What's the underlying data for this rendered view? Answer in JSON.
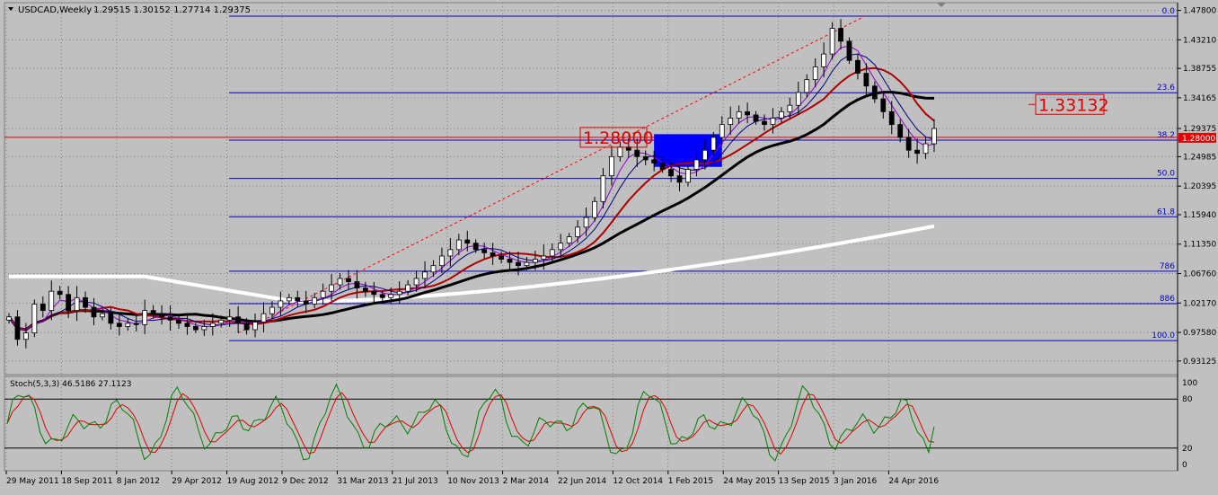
{
  "window": {
    "title": "USDCAD,Weekly",
    "ohlc": "1.29515 1.30152 1.27714 1.29375"
  },
  "colors": {
    "background": "#c0c0c0",
    "grid": "#808080",
    "fib_levels": "#0000c8",
    "level_line": "#e00000",
    "trendline": "#ff0000",
    "box_fill": "#0000ff",
    "candle_body": "#000000",
    "ma_white": "#ffffff",
    "ma_black": "#000000",
    "ma_red": "#b00000",
    "ma_navy": "#000080",
    "ma_purple": "#9400d3",
    "stoch_main": "#008000",
    "stoch_signal": "#e00000"
  },
  "chart_data": [
    {
      "type": "candlestick",
      "title": "USDCAD,Weekly",
      "ohlc_last": {
        "open": 1.29515,
        "high": 1.30152,
        "low": 1.27714,
        "close": 1.29375
      },
      "ylim": [
        0.91,
        1.49
      ],
      "y_ticks": [
        "1.47800",
        "1.43210",
        "1.38755",
        "1.34165",
        "1.29375",
        "1.24985",
        "1.20395",
        "1.15940",
        "1.11350",
        "1.06760",
        "1.02170",
        "0.97580",
        "0.93125"
      ],
      "price_tag": "1.28000",
      "x_ticks": [
        "29 May 2011",
        "18 Sep 2011",
        "8 Jan 2012",
        "29 Apr 2012",
        "19 Aug 2012",
        "9 Dec 2012",
        "31 Mar 2013",
        "21 Jul 2013",
        "10 Nov 2013",
        "2 Mar 2014",
        "22 Jun 2014",
        "12 Oct 2014",
        "1 Feb 2015",
        "24 May 2015",
        "13 Sep 2015",
        "3 Jan 2016",
        "24 Apr 2016"
      ],
      "fib_levels": [
        {
          "label": "0.0",
          "value": 1.4689
        },
        {
          "label": "23.6",
          "value": 1.3496
        },
        {
          "label": "38.2",
          "value": 1.2757
        },
        {
          "label": "50.0",
          "value": 1.216
        },
        {
          "label": "61.8",
          "value": 1.1562
        },
        {
          "label": "786",
          "value": 1.0713
        },
        {
          "label": "886",
          "value": 1.0207
        },
        {
          "label": "100.0",
          "value": 0.9631
        }
      ],
      "horizontal_level": 1.28,
      "annotations": [
        {
          "text": "1.28000",
          "value": 1.28
        },
        {
          "text": "1.33132",
          "value": 1.33132
        }
      ],
      "series_closes": [
        1.0,
        0.965,
        0.975,
        1.02,
        1.01,
        1.04,
        1.035,
        1.01,
        1.03,
        1.015,
        1.0,
        1.005,
        0.99,
        0.985,
        0.99,
        0.988,
        1.01,
        1.005,
        1.0,
        0.995,
        0.99,
        0.985,
        0.98,
        0.985,
        0.99,
        0.995,
        1.0,
        0.99,
        0.98,
        0.992,
        1.005,
        1.015,
        1.025,
        1.03,
        1.025,
        1.02,
        1.03,
        1.04,
        1.05,
        1.06,
        1.055,
        1.045,
        1.04,
        1.035,
        1.03,
        1.035,
        1.04,
        1.05,
        1.06,
        1.07,
        1.08,
        1.095,
        1.105,
        1.12,
        1.115,
        1.105,
        1.1,
        1.095,
        1.09,
        1.085,
        1.08,
        1.085,
        1.09,
        1.095,
        1.105,
        1.115,
        1.125,
        1.14,
        1.155,
        1.18,
        1.22,
        1.25,
        1.265,
        1.26,
        1.25,
        1.245,
        1.24,
        1.23,
        1.22,
        1.21,
        1.23,
        1.245,
        1.26,
        1.28,
        1.3,
        1.31,
        1.32,
        1.315,
        1.305,
        1.3,
        1.31,
        1.32,
        1.33,
        1.35,
        1.37,
        1.39,
        1.41,
        1.45,
        1.43,
        1.4,
        1.38,
        1.36,
        1.34,
        1.32,
        1.3,
        1.28,
        1.26,
        1.255,
        1.27,
        1.2938
      ]
    },
    {
      "type": "line",
      "title": "Stoch(5,3,3) 46.5186 27.1123",
      "ylim": [
        0,
        100
      ],
      "y_ticks": [
        "100",
        "80",
        "20",
        "0"
      ],
      "levels": [
        80,
        20
      ],
      "series": [
        {
          "name": "main",
          "last": 46.5186
        },
        {
          "name": "signal",
          "last": 27.1123
        }
      ]
    }
  ]
}
